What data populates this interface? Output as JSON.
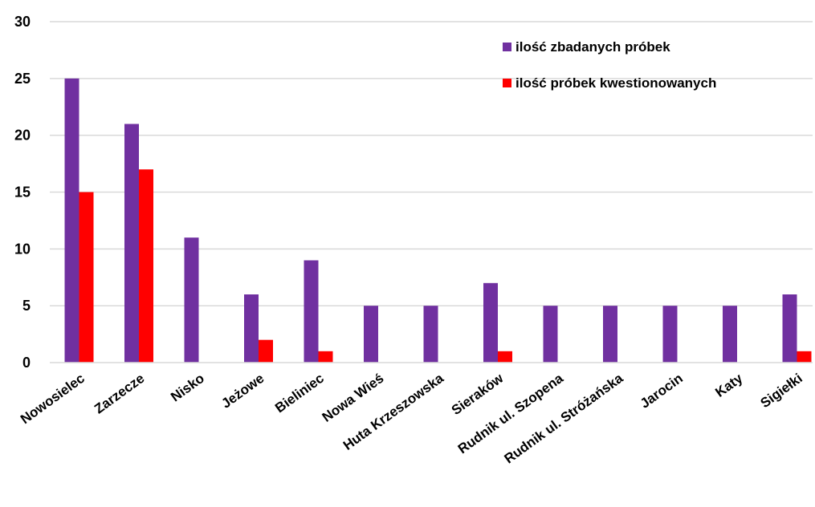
{
  "chart_data": {
    "type": "bar",
    "categories": [
      "Nowosielec",
      "Zarzecze",
      "Nisko",
      "Jeżowe",
      "Bieliniec",
      "Nowa Wieś",
      "Huta Krzeszowska",
      "Sieraków",
      "Rudnik ul. Szopena",
      "Rudnik ul. Stróżańska",
      "Jarocin",
      "Katy",
      "Sigiełki"
    ],
    "series": [
      {
        "name": "ilość zbadanych próbek",
        "color": "#7030a0",
        "values": [
          25,
          21,
          11,
          6,
          9,
          5,
          5,
          7,
          5,
          5,
          5,
          5,
          6
        ]
      },
      {
        "name": "ilość próbek kwestionowanych",
        "color": "#ff0000",
        "values": [
          15,
          17,
          0,
          2,
          1,
          0,
          0,
          1,
          0,
          0,
          0,
          0,
          1
        ]
      }
    ],
    "yticks": [
      0,
      5,
      10,
      15,
      20,
      25,
      30
    ],
    "ylim": [
      0,
      30
    ],
    "grid": true,
    "legend": "top-right",
    "title": "",
    "xlabel": "",
    "ylabel": ""
  }
}
